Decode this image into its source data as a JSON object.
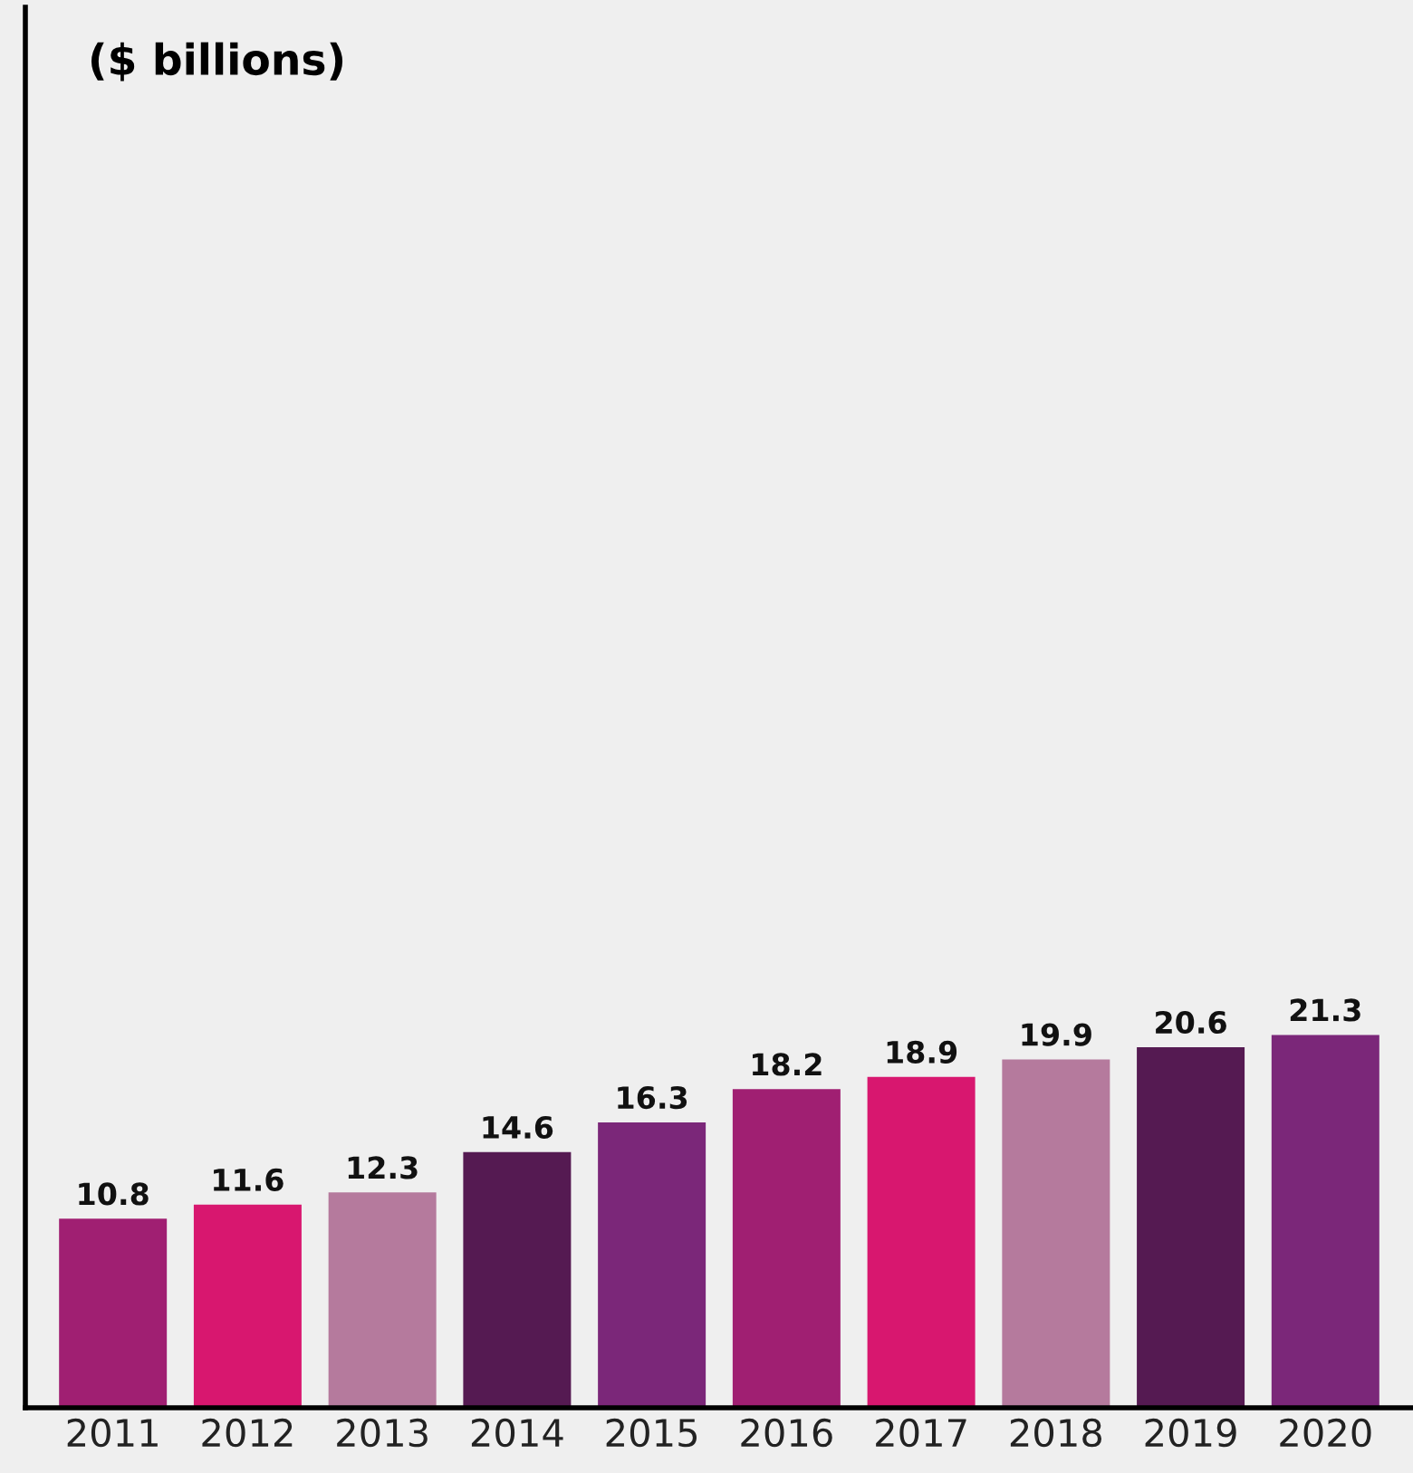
{
  "chart_data": {
    "type": "bar",
    "ylabel": "($ billions)",
    "categories": [
      "2011",
      "2012",
      "2013",
      "2014",
      "2015",
      "2016",
      "2017",
      "2018",
      "2019",
      "2020"
    ],
    "values": [
      10.8,
      11.6,
      12.3,
      14.6,
      16.3,
      18.2,
      18.9,
      19.9,
      20.6,
      21.3
    ],
    "colors": [
      "#a01f72",
      "#d8176f",
      "#b57a9d",
      "#551a52",
      "#7b2779",
      "#a01f72",
      "#d8176f",
      "#b57a9d",
      "#551a52",
      "#7b2779"
    ],
    "ylim": [
      0,
      80
    ],
    "data_labels": true,
    "grid": false
  }
}
